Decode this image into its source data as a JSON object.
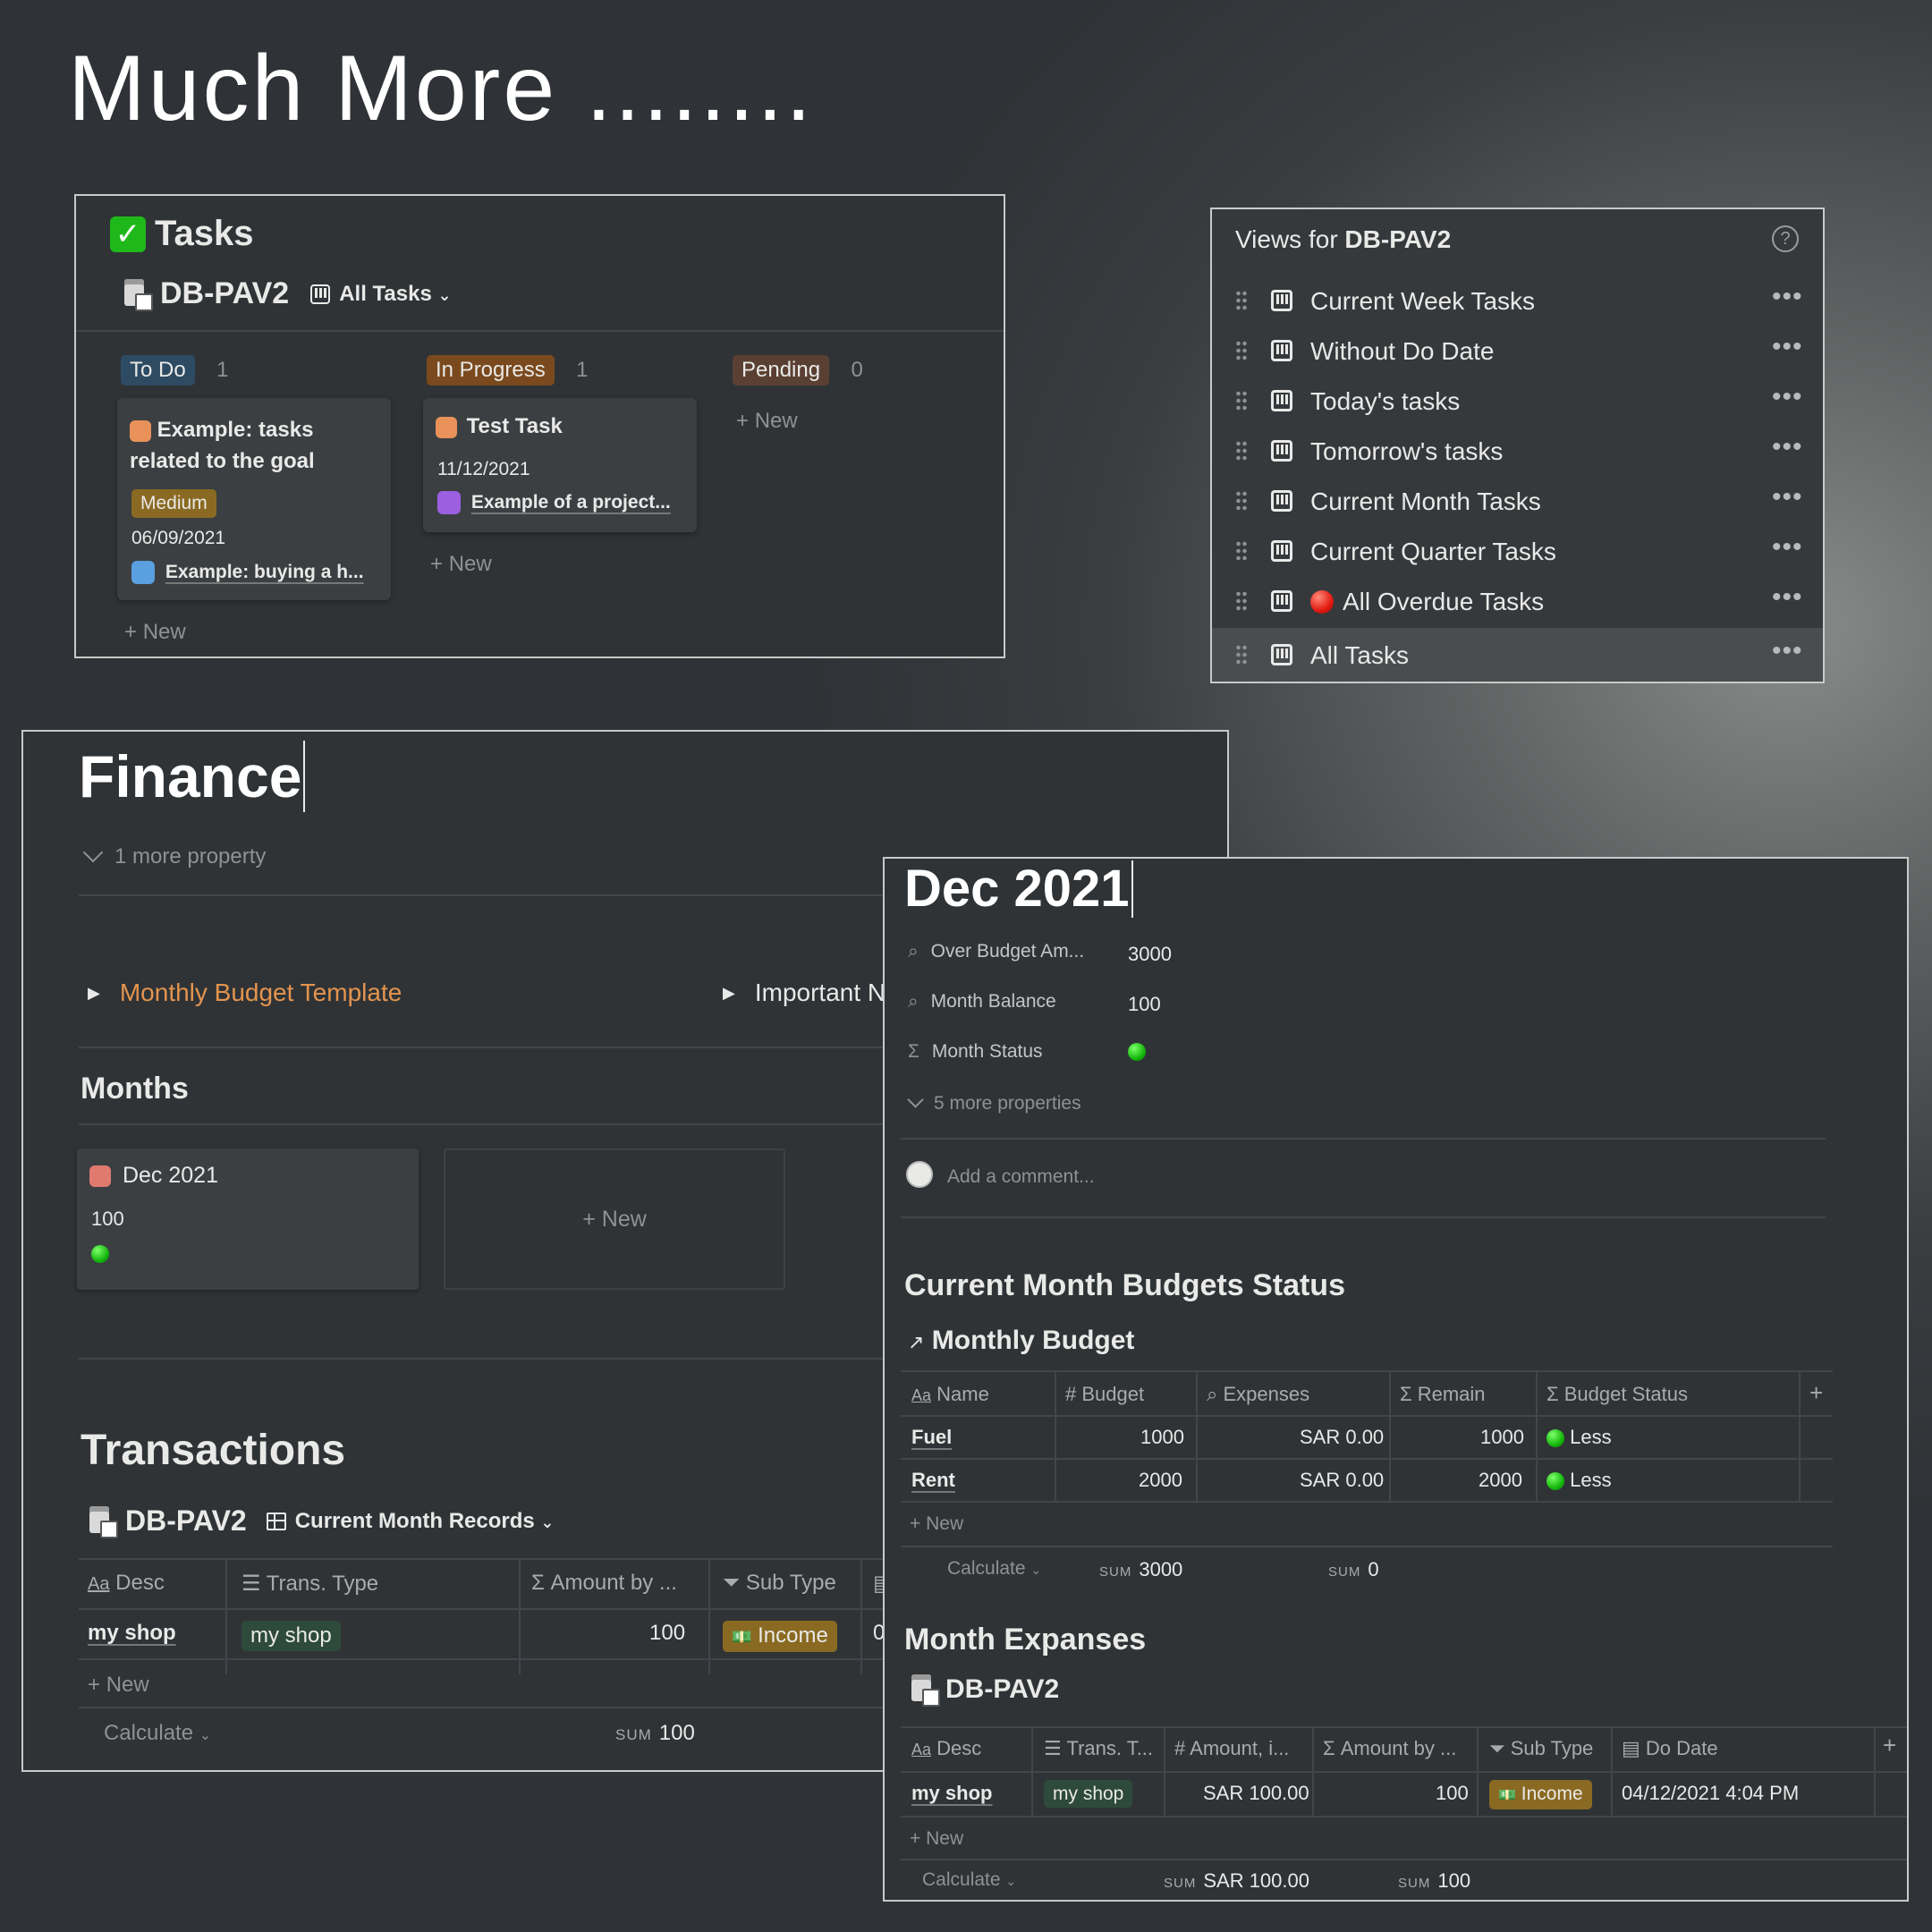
{
  "headline": "Much More ........",
  "tasks": {
    "title": "Tasks",
    "db_name": "DB-PAV2",
    "view_label": "All Tasks",
    "columns": [
      {
        "name": "To Do",
        "count": "1",
        "color": "#2d4b63"
      },
      {
        "name": "In Progress",
        "count": "1",
        "color": "#7a4a1e"
      },
      {
        "name": "Pending",
        "count": "0",
        "color": "#5a4032"
      }
    ],
    "card1": {
      "title_line1": "Example: tasks",
      "title_line2": "related to the goal",
      "tag": "Medium",
      "date": "06/09/2021",
      "relation": "Example: buying a h..."
    },
    "card2": {
      "title": "Test Task",
      "date": "11/12/2021",
      "relation": "Example of a project..."
    },
    "new_label": "New"
  },
  "views": {
    "title_prefix": "Views for ",
    "title_db": "DB-PAV2",
    "items": [
      {
        "label": "Current Week Tasks"
      },
      {
        "label": "Without Do Date"
      },
      {
        "label": "Today's tasks"
      },
      {
        "label": "Tomorrow's tasks"
      },
      {
        "label": "Current Month Tasks"
      },
      {
        "label": "Current Quarter Tasks"
      },
      {
        "label": "All Overdue Tasks"
      },
      {
        "label": "All Tasks"
      }
    ]
  },
  "finance": {
    "title": "Finance",
    "more_property": "1 more property",
    "toggle1": "Monthly Budget Template",
    "toggle2": "Important N",
    "months_heading": "Months",
    "month_card": {
      "title": "Dec 2021",
      "value": "100"
    },
    "new_label": "New",
    "transactions_heading": "Transactions",
    "db_name": "DB-PAV2",
    "view_label": "Current Month Records",
    "headers": [
      "Desc",
      "Trans. Type",
      "Amount by ...",
      "Sub Type"
    ],
    "row": {
      "desc": "my shop",
      "type": "my shop",
      "amount": "100",
      "sub_type": "Income",
      "extra": "0"
    },
    "calculate": "Calculate",
    "sum_label": "SUM",
    "sum_value": "100"
  },
  "dec": {
    "title": "Dec 2021",
    "props": [
      {
        "name": "Over Budget Am...",
        "value": "3000"
      },
      {
        "name": "Month Balance",
        "value": "100"
      },
      {
        "name": "Month Status",
        "value": ""
      }
    ],
    "more_props": "5 more properties",
    "comment_placeholder": "Add a comment...",
    "budget_heading": "Current Month Budgets Status",
    "budget_db": "Monthly Budget",
    "budget_headers": [
      "Name",
      "Budget",
      "Expenses",
      "Remain",
      "Budget Status"
    ],
    "budget_rows": [
      {
        "name": "Fuel",
        "budget": "1000",
        "expenses": "SAR 0.00",
        "remain": "1000",
        "status": "Less"
      },
      {
        "name": "Rent",
        "budget": "2000",
        "expenses": "SAR 0.00",
        "remain": "2000",
        "status": "Less"
      }
    ],
    "new_label": "New",
    "calculate": "Calculate",
    "sum_label": "SUM",
    "budget_sum1": "3000",
    "budget_sum2": "0",
    "exp_heading": "Month Expanses",
    "exp_db": "DB-PAV2",
    "exp_headers": [
      "Desc",
      "Trans. T...",
      "Amount, i...",
      "Amount by ...",
      "Sub Type",
      "Do Date"
    ],
    "exp_row": {
      "desc": "my shop",
      "type": "my shop",
      "amount": "SAR 100.00",
      "amount_by": "100",
      "sub_type": "Income",
      "date": "04/12/2021 4:04 PM"
    },
    "exp_sum1": "SAR 100.00",
    "exp_sum2": "100"
  }
}
